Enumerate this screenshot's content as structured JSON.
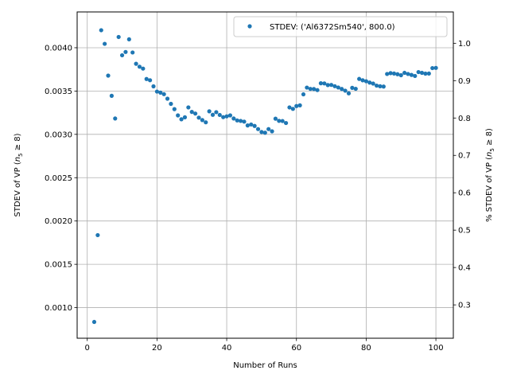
{
  "chart_data": {
    "type": "scatter",
    "xlabel": "Number of Runs",
    "ylabel": {
      "prefix": "STDEV of VP (",
      "italic": "n",
      "sub": "5",
      "suffix": " ≥ 8)"
    },
    "y2label": {
      "prefix": "% STDEV of VP (",
      "italic": "n",
      "sub": "5",
      "suffix": " ≥ 8)"
    },
    "xlim": [
      -2.9,
      105.0
    ],
    "ylim": [
      0.000647,
      0.004413
    ],
    "y2lim": [
      0.2108,
      1.0838
    ],
    "x_ticks": [
      0,
      20,
      40,
      60,
      80,
      100
    ],
    "y_ticks": [
      0.001,
      0.0015,
      0.002,
      0.0025,
      0.003,
      0.0035,
      0.004
    ],
    "y_tick_labels": [
      "0.0010",
      "0.0015",
      "0.0020",
      "0.0025",
      "0.0030",
      "0.0035",
      "0.0040"
    ],
    "y2_ticks": [
      0.3,
      0.4,
      0.5,
      0.6,
      0.7,
      0.8,
      0.9,
      1.0
    ],
    "y2_tick_labels": [
      "0.3",
      "0.4",
      "0.5",
      "0.6",
      "0.7",
      "0.8",
      "0.9",
      "1.0"
    ],
    "grid": true,
    "legend_position": "top-right",
    "series": [
      {
        "name": "STDEV: ('Al6372Sm540', 800.0)",
        "color": "#1f77b4",
        "x": [
          2,
          3,
          4,
          5,
          6,
          7,
          8,
          9,
          10,
          11,
          12,
          13,
          14,
          15,
          16,
          17,
          18,
          19,
          20,
          21,
          22,
          23,
          24,
          25,
          26,
          27,
          28,
          29,
          30,
          31,
          32,
          33,
          34,
          35,
          36,
          37,
          38,
          39,
          40,
          41,
          42,
          43,
          44,
          45,
          46,
          47,
          48,
          49,
          50,
          51,
          52,
          53,
          54,
          55,
          56,
          57,
          58,
          59,
          60,
          61,
          62,
          63,
          64,
          65,
          66,
          67,
          68,
          69,
          70,
          71,
          72,
          73,
          74,
          75,
          76,
          77,
          78,
          79,
          80,
          81,
          82,
          83,
          84,
          85,
          86,
          87,
          88,
          89,
          90,
          91,
          92,
          93,
          94,
          95,
          96,
          97,
          98,
          99,
          100
        ],
        "y": [
          0.000835,
          0.001837,
          0.004202,
          0.004045,
          0.003678,
          0.003445,
          0.003183,
          0.004124,
          0.003913,
          0.003951,
          0.004097,
          0.003945,
          0.003815,
          0.003781,
          0.003759,
          0.003639,
          0.003625,
          0.003554,
          0.003494,
          0.003482,
          0.003464,
          0.003412,
          0.003352,
          0.003291,
          0.003219,
          0.003174,
          0.003197,
          0.003311,
          0.003259,
          0.00324,
          0.003193,
          0.003165,
          0.003139,
          0.003266,
          0.003226,
          0.003256,
          0.003224,
          0.003199,
          0.003208,
          0.003219,
          0.003183,
          0.003161,
          0.003155,
          0.003147,
          0.003103,
          0.003114,
          0.003097,
          0.003061,
          0.003027,
          0.003019,
          0.003061,
          0.003035,
          0.003181,
          0.003156,
          0.003154,
          0.003131,
          0.003311,
          0.003294,
          0.003327,
          0.003335,
          0.003462,
          0.00354,
          0.003525,
          0.003523,
          0.003511,
          0.00359,
          0.003588,
          0.003569,
          0.003571,
          0.003556,
          0.003541,
          0.003524,
          0.003504,
          0.003474,
          0.003537,
          0.003526,
          0.00364,
          0.003624,
          0.003613,
          0.003598,
          0.003586,
          0.003563,
          0.003555,
          0.003552,
          0.003697,
          0.003707,
          0.003702,
          0.003694,
          0.003683,
          0.00371,
          0.003697,
          0.003686,
          0.003674,
          0.003719,
          0.00371,
          0.003701,
          0.003702,
          0.003765,
          0.003767
        ]
      }
    ]
  }
}
